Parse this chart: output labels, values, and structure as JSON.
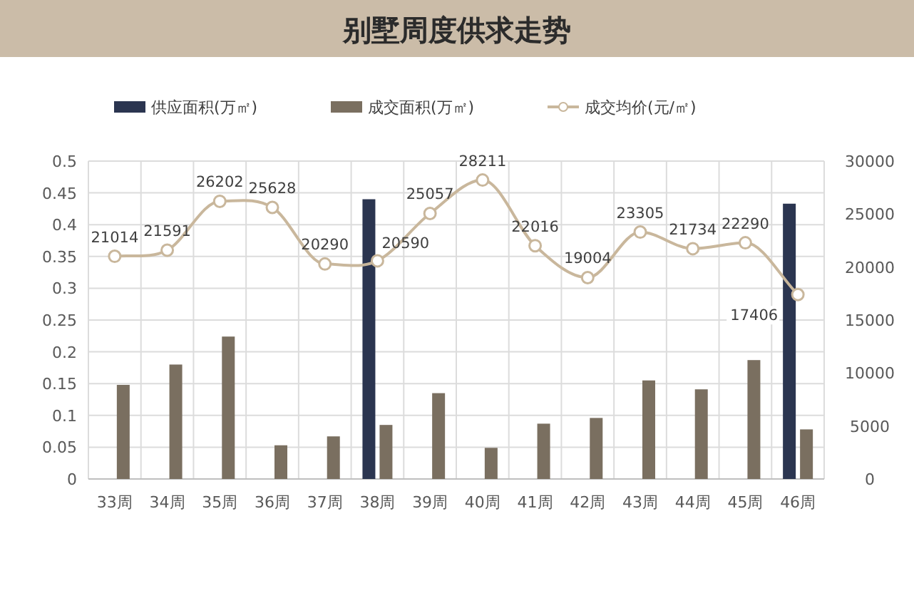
{
  "chart_data": {
    "type": "bar",
    "title": "别墅周度供求走势",
    "categories": [
      "33周",
      "34周",
      "35周",
      "36周",
      "37周",
      "38周",
      "39周",
      "40周",
      "41周",
      "42周",
      "43周",
      "44周",
      "45周",
      "46周"
    ],
    "series": [
      {
        "name": "供应面积(万㎡)",
        "color": "#2b3550",
        "values": [
          null,
          null,
          null,
          null,
          null,
          0.44,
          null,
          null,
          null,
          null,
          null,
          null,
          null,
          0.433
        ]
      },
      {
        "name": "成交面积(万㎡)",
        "color": "#7a6f60",
        "values": [
          0.148,
          0.18,
          0.224,
          0.053,
          0.067,
          0.085,
          0.135,
          0.049,
          0.087,
          0.096,
          0.155,
          0.141,
          0.187,
          0.078
        ]
      },
      {
        "name": "成交均价(元/㎡)",
        "type": "line",
        "axis": "y2",
        "color": "#c9b79c",
        "marker": "circle",
        "data_labels": true,
        "values": [
          21014,
          21591,
          26202,
          25628,
          20290,
          20590,
          25057,
          28211,
          22016,
          19004,
          23305,
          21734,
          22290,
          17406
        ]
      }
    ],
    "ylim": [
      0,
      0.5
    ],
    "yticks": [
      0,
      0.05,
      0.1,
      0.15,
      0.2,
      0.25,
      0.3,
      0.35,
      0.4,
      0.45,
      0.5
    ],
    "y2lim": [
      0,
      30000
    ],
    "y2ticks": [
      0,
      5000,
      10000,
      15000,
      20000,
      25000,
      30000
    ],
    "grid": true,
    "legend": "top"
  }
}
